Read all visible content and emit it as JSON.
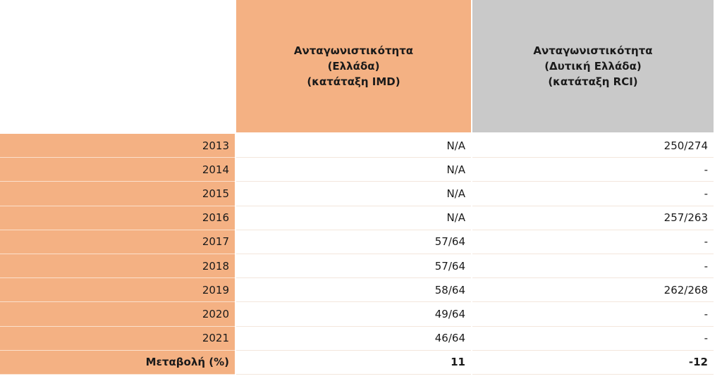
{
  "table": {
    "columns": [
      [
        "Ανταγωνιστικότητα",
        "(Ελλάδα)",
        "(κατάταξη IMD)"
      ],
      [
        "Ανταγωνιστικότητα",
        "(Δυτική Ελλάδα)",
        "(κατάταξη RCI)"
      ]
    ],
    "rows": [
      [
        "2013",
        "N/A",
        "250/274"
      ],
      [
        "2014",
        "N/A",
        "-"
      ],
      [
        "2015",
        "N/A",
        "-"
      ],
      [
        "2016",
        "N/A",
        "257/263"
      ],
      [
        "2017",
        "57/64",
        "-"
      ],
      [
        "2018",
        "57/64",
        "-"
      ],
      [
        "2019",
        "58/64",
        "262/268"
      ],
      [
        "2020",
        "49/64",
        "-"
      ],
      [
        "2021",
        "46/64",
        "-"
      ],
      [
        "Μεταβολή (%)",
        "11",
        "-12"
      ]
    ]
  }
}
